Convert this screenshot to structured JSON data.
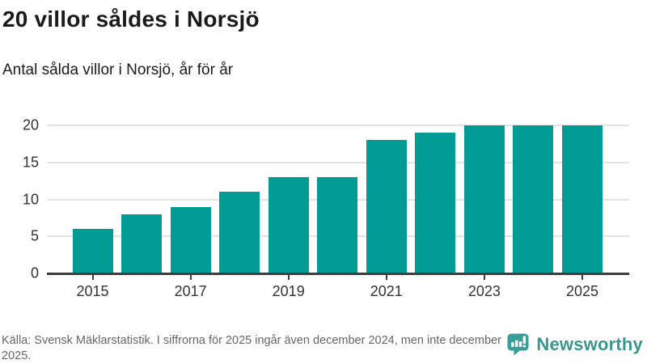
{
  "header": {
    "title": "20 villor såldes i Norsjö",
    "subtitle": "Antal sålda villor i Norsjö, år för år"
  },
  "chart_data": {
    "type": "bar",
    "categories": [
      "2015",
      "2016",
      "2017",
      "2018",
      "2019",
      "2020",
      "2021",
      "2022",
      "2023",
      "2024",
      "2025"
    ],
    "values": [
      6,
      8,
      9,
      11,
      13,
      13,
      18,
      19,
      20,
      20,
      20
    ],
    "title": "20 villor såldes i Norsjö",
    "xlabel": "",
    "ylabel": "",
    "ylim": [
      0,
      20
    ],
    "y_ticks": [
      0,
      5,
      10,
      15,
      20
    ],
    "x_tick_labels": [
      "2015",
      "2017",
      "2019",
      "2021",
      "2023",
      "2025"
    ],
    "grid": true,
    "legend": "none",
    "bar_color": "#009b94"
  },
  "footer": {
    "source": "Källa: Svensk Mäklarstatistik. I siffrorna för 2025 ingår även december 2024, men inte december 2025.",
    "brand": "Newsworthy",
    "brand_color": "#39978f",
    "logo_icon": "bar-chart-speech-bubble-icon"
  }
}
